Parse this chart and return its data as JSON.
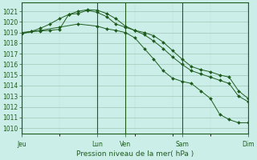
{
  "bg_color": "#cceee8",
  "grid_color_major": "#a0c8b8",
  "grid_color_minor": "#b8ddd0",
  "line_color": "#1e5c1e",
  "ylim": [
    1009.5,
    1021.8
  ],
  "yticks": [
    1010,
    1011,
    1012,
    1013,
    1014,
    1015,
    1016,
    1017,
    1018,
    1019,
    1020,
    1021
  ],
  "xlabel": "Pression niveau de la mer( hPa )",
  "xtick_labels": [
    "Jeu",
    "",
    "Lun",
    "Ven",
    "",
    "Sam",
    "",
    "Dim"
  ],
  "vline_positions": [
    0,
    8,
    11,
    17,
    24
  ],
  "line1_x": [
    0,
    1,
    2,
    3,
    4,
    5,
    6,
    7,
    8,
    9,
    10,
    11,
    12,
    13,
    14,
    15,
    16,
    17,
    18,
    19,
    20,
    21,
    22,
    23,
    24
  ],
  "line1_y": [
    1019.0,
    1019.1,
    1019.15,
    1019.2,
    1019.3,
    1020.7,
    1020.8,
    1021.1,
    1020.9,
    1020.5,
    1019.8,
    1019.5,
    1019.2,
    1018.8,
    1018.2,
    1017.5,
    1016.7,
    1016.0,
    1015.4,
    1015.1,
    1014.8,
    1014.5,
    1014.2,
    1013.0,
    1012.5
  ],
  "line2_x": [
    0,
    1,
    2,
    3,
    4,
    5,
    6,
    7,
    8,
    9,
    10,
    11,
    12,
    13,
    14,
    15,
    16,
    17,
    18,
    19,
    20,
    21,
    22,
    23,
    24
  ],
  "line2_y": [
    1018.9,
    1019.1,
    1019.4,
    1019.8,
    1020.3,
    1020.7,
    1021.0,
    1021.15,
    1021.1,
    1020.8,
    1020.3,
    1019.6,
    1019.2,
    1019.0,
    1018.7,
    1018.1,
    1017.3,
    1016.5,
    1015.8,
    1015.5,
    1015.3,
    1015.0,
    1014.8,
    1013.5,
    1012.8
  ],
  "line3_x": [
    0,
    2,
    4,
    6,
    8,
    9,
    10,
    11,
    12,
    13,
    14,
    15,
    16,
    17,
    18,
    19,
    20,
    21,
    22,
    23,
    24
  ],
  "line3_y": [
    1018.9,
    1019.2,
    1019.5,
    1019.8,
    1019.6,
    1019.35,
    1019.2,
    1019.0,
    1018.5,
    1017.5,
    1016.5,
    1015.4,
    1014.7,
    1014.4,
    1014.2,
    1013.5,
    1012.8,
    1011.3,
    1010.8,
    1010.5,
    1010.5
  ],
  "show_labels_xtick": [
    "Jeu",
    "Lun",
    "Ven",
    "Sam",
    "Dim"
  ],
  "show_positions_xtick": [
    0,
    8,
    11,
    17,
    24
  ]
}
